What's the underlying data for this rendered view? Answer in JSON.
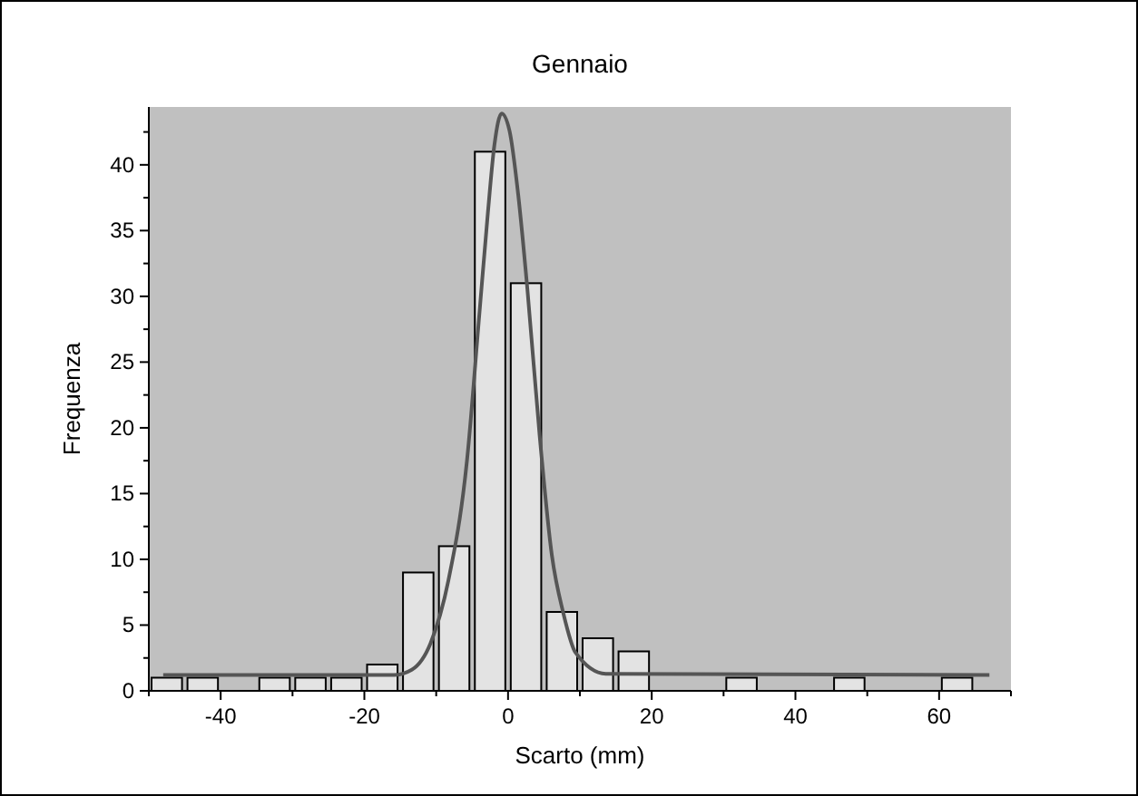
{
  "chart_data": {
    "type": "histogram",
    "title": "Gennaio",
    "xlabel": "Scarto (mm)",
    "ylabel": "Frequenza",
    "bins": [
      -50,
      -45,
      -40,
      -35,
      -30,
      -25,
      -20,
      -15,
      -10,
      -5,
      0,
      5,
      10,
      15,
      20,
      25,
      30,
      35,
      40,
      45,
      50,
      55,
      60,
      65
    ],
    "series": [
      {
        "color": "#e3e3e3",
        "values": [
          1,
          1,
          0,
          1,
          1,
          1,
          2,
          9,
          11,
          41,
          31,
          6,
          4,
          3,
          0,
          0,
          1,
          0,
          0,
          1,
          0,
          0,
          1
        ]
      },
      {
        "type": "line",
        "color": "#555555",
        "x": [
          -48,
          -15.9,
          -13.4,
          -10.8,
          -8.3,
          -5.7,
          -4.0,
          -2.8,
          -1.9,
          -0.9,
          0.2,
          1.4,
          2.7,
          4.4,
          6.1,
          7.7,
          9.4,
          13.6,
          67
        ],
        "values": [
          1.2,
          1.2,
          1.6,
          3.6,
          8.4,
          17.6,
          28.6,
          36.4,
          41.5,
          43.9,
          42.6,
          37.8,
          30.5,
          19.4,
          10.3,
          5.9,
          2.9,
          1.3,
          1.2
        ]
      }
    ],
    "xlim": [
      -50,
      70
    ],
    "xticks": [
      {
        "value": -50,
        "label": null
      },
      -40,
      {
        "value": -30,
        "label": null
      },
      -20,
      {
        "value": -10,
        "label": null
      },
      0,
      {
        "value": 10,
        "label": null
      },
      20,
      {
        "value": 30,
        "label": null
      },
      40,
      {
        "value": 50,
        "label": null
      },
      60,
      {
        "value": 70,
        "label": null
      }
    ],
    "ylim": [
      0,
      44.4
    ],
    "yticks": [
      0,
      {
        "value": 2.5,
        "label": null
      },
      5,
      {
        "value": 7.5,
        "label": null
      },
      10,
      {
        "value": 12.5,
        "label": null
      },
      15,
      {
        "value": 17.5,
        "label": null
      },
      20,
      {
        "value": 22.5,
        "label": null
      },
      25,
      {
        "value": 27.5,
        "label": null
      },
      30,
      {
        "value": 32.5,
        "label": null
      },
      35,
      {
        "value": 37.5,
        "label": null
      },
      40,
      {
        "value": 42.5,
        "label": null
      }
    ],
    "grid": false
  }
}
